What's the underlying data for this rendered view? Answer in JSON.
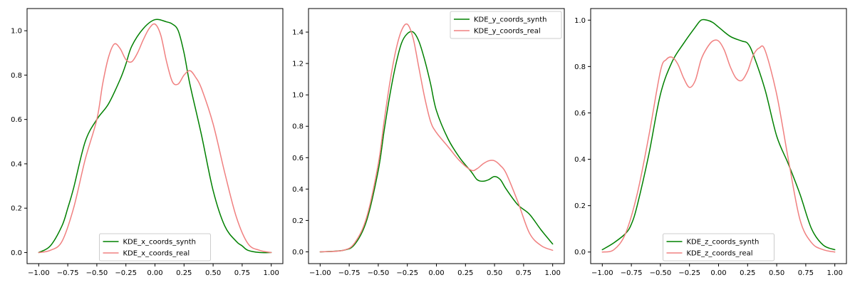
{
  "chart_data": [
    {
      "type": "line",
      "title": "",
      "xlabel": "",
      "ylabel": "",
      "xlim": [
        -1.1,
        1.1
      ],
      "ylim": [
        -0.05,
        1.1
      ],
      "xticks": [
        -1.0,
        -0.75,
        -0.5,
        -0.25,
        0.0,
        0.25,
        0.5,
        0.75,
        1.0
      ],
      "xtick_labels": [
        "−1.00",
        "−0.75",
        "−0.50",
        "−0.25",
        "0.00",
        "0.25",
        "0.50",
        "0.75",
        "1.00"
      ],
      "yticks": [
        0.0,
        0.2,
        0.4,
        0.6,
        0.8,
        1.0
      ],
      "ytick_labels": [
        "0.0",
        "0.2",
        "0.4",
        "0.6",
        "0.8",
        "1.0"
      ],
      "legend_position": "lower-center",
      "series": [
        {
          "name": "KDE_x_coords_synth",
          "color": "#008000",
          "x": [
            -1.0,
            -0.9,
            -0.8,
            -0.75,
            -0.7,
            -0.6,
            -0.5,
            -0.4,
            -0.3,
            -0.25,
            -0.2,
            -0.1,
            0.0,
            0.1,
            0.15,
            0.2,
            0.25,
            0.3,
            0.4,
            0.5,
            0.6,
            0.7,
            0.75,
            0.8,
            0.9,
            1.0
          ],
          "y": [
            0.0,
            0.03,
            0.12,
            0.2,
            0.29,
            0.5,
            0.6,
            0.67,
            0.78,
            0.85,
            0.93,
            1.01,
            1.05,
            1.04,
            1.03,
            1.0,
            0.9,
            0.76,
            0.53,
            0.28,
            0.12,
            0.05,
            0.03,
            0.01,
            0.0,
            0.0
          ]
        },
        {
          "name": "KDE_x_coords_real",
          "color": "#f08080",
          "x": [
            -1.0,
            -0.9,
            -0.8,
            -0.7,
            -0.6,
            -0.5,
            -0.45,
            -0.4,
            -0.35,
            -0.3,
            -0.25,
            -0.2,
            -0.15,
            -0.1,
            -0.05,
            0.0,
            0.05,
            0.1,
            0.15,
            0.2,
            0.25,
            0.3,
            0.35,
            0.4,
            0.5,
            0.6,
            0.7,
            0.8,
            0.9,
            1.0
          ],
          "y": [
            0.0,
            0.01,
            0.05,
            0.2,
            0.42,
            0.6,
            0.76,
            0.88,
            0.94,
            0.92,
            0.87,
            0.86,
            0.9,
            0.96,
            1.01,
            1.03,
            0.98,
            0.86,
            0.77,
            0.76,
            0.8,
            0.82,
            0.79,
            0.74,
            0.58,
            0.36,
            0.16,
            0.04,
            0.01,
            0.0
          ]
        }
      ]
    },
    {
      "type": "line",
      "title": "",
      "xlabel": "",
      "ylabel": "",
      "xlim": [
        -1.1,
        1.1
      ],
      "ylim": [
        -0.075,
        1.55
      ],
      "xticks": [
        -1.0,
        -0.75,
        -0.5,
        -0.25,
        0.0,
        0.25,
        0.5,
        0.75,
        1.0
      ],
      "xtick_labels": [
        "−1.00",
        "−0.75",
        "−0.50",
        "−0.25",
        "0.00",
        "0.25",
        "0.50",
        "0.75",
        "1.00"
      ],
      "yticks": [
        0.0,
        0.2,
        0.4,
        0.6,
        0.8,
        1.0,
        1.2,
        1.4
      ],
      "ytick_labels": [
        "0.0",
        "0.2",
        "0.4",
        "0.6",
        "0.8",
        "1.0",
        "1.2",
        "1.4"
      ],
      "legend_position": "upper-right",
      "series": [
        {
          "name": "KDE_y_coords_synth",
          "color": "#008000",
          "x": [
            -1.0,
            -0.8,
            -0.7,
            -0.6,
            -0.5,
            -0.45,
            -0.4,
            -0.35,
            -0.3,
            -0.25,
            -0.2,
            -0.15,
            -0.1,
            -0.05,
            0.0,
            0.1,
            0.2,
            0.3,
            0.35,
            0.4,
            0.45,
            0.5,
            0.55,
            0.6,
            0.7,
            0.8,
            0.9,
            1.0
          ],
          "y": [
            0.0,
            0.01,
            0.05,
            0.2,
            0.52,
            0.77,
            1.0,
            1.19,
            1.33,
            1.39,
            1.4,
            1.34,
            1.22,
            1.07,
            0.9,
            0.72,
            0.6,
            0.51,
            0.46,
            0.45,
            0.46,
            0.48,
            0.46,
            0.4,
            0.3,
            0.24,
            0.14,
            0.05
          ]
        },
        {
          "name": "KDE_y_coords_real",
          "color": "#f08080",
          "x": [
            -1.0,
            -0.8,
            -0.7,
            -0.6,
            -0.5,
            -0.45,
            -0.4,
            -0.35,
            -0.3,
            -0.25,
            -0.2,
            -0.15,
            -0.1,
            -0.05,
            0.0,
            0.1,
            0.2,
            0.3,
            0.35,
            0.4,
            0.45,
            0.5,
            0.55,
            0.6,
            0.7,
            0.8,
            0.9,
            1.0
          ],
          "y": [
            0.0,
            0.01,
            0.06,
            0.22,
            0.56,
            0.83,
            1.08,
            1.28,
            1.41,
            1.45,
            1.36,
            1.17,
            0.98,
            0.83,
            0.76,
            0.67,
            0.58,
            0.52,
            0.53,
            0.56,
            0.58,
            0.58,
            0.55,
            0.5,
            0.32,
            0.12,
            0.04,
            0.01
          ]
        }
      ]
    },
    {
      "type": "line",
      "title": "",
      "xlabel": "",
      "ylabel": "",
      "xlim": [
        -1.1,
        1.1
      ],
      "ylim": [
        -0.05,
        1.05
      ],
      "xticks": [
        -1.0,
        -0.75,
        -0.5,
        -0.25,
        0.0,
        0.25,
        0.5,
        0.75,
        1.0
      ],
      "xtick_labels": [
        "−1.00",
        "−0.75",
        "−0.50",
        "−0.25",
        "0.00",
        "0.25",
        "0.50",
        "0.75",
        "1.00"
      ],
      "yticks": [
        0.0,
        0.2,
        0.4,
        0.6,
        0.8,
        1.0
      ],
      "ytick_labels": [
        "0.0",
        "0.2",
        "0.4",
        "0.6",
        "0.8",
        "1.0"
      ],
      "legend_position": "lower-center",
      "series": [
        {
          "name": "KDE_z_coords_synth",
          "color": "#008000",
          "x": [
            -1.0,
            -0.9,
            -0.8,
            -0.75,
            -0.7,
            -0.6,
            -0.5,
            -0.4,
            -0.3,
            -0.2,
            -0.15,
            -0.1,
            -0.05,
            0.0,
            0.1,
            0.2,
            0.25,
            0.3,
            0.4,
            0.5,
            0.6,
            0.7,
            0.8,
            0.9,
            1.0
          ],
          "y": [
            0.01,
            0.04,
            0.08,
            0.12,
            0.2,
            0.42,
            0.68,
            0.82,
            0.9,
            0.97,
            1.0,
            1.0,
            0.99,
            0.97,
            0.93,
            0.91,
            0.9,
            0.85,
            0.7,
            0.5,
            0.38,
            0.25,
            0.1,
            0.03,
            0.01
          ]
        },
        {
          "name": "KDE_z_coords_real",
          "color": "#f08080",
          "x": [
            -1.0,
            -0.9,
            -0.8,
            -0.7,
            -0.6,
            -0.5,
            -0.45,
            -0.4,
            -0.35,
            -0.3,
            -0.25,
            -0.2,
            -0.15,
            -0.1,
            -0.05,
            0.0,
            0.05,
            0.1,
            0.15,
            0.2,
            0.25,
            0.3,
            0.35,
            0.4,
            0.5,
            0.6,
            0.7,
            0.8,
            0.9,
            1.0
          ],
          "y": [
            0.0,
            0.01,
            0.08,
            0.25,
            0.5,
            0.78,
            0.83,
            0.84,
            0.81,
            0.75,
            0.71,
            0.74,
            0.83,
            0.88,
            0.91,
            0.91,
            0.87,
            0.8,
            0.75,
            0.74,
            0.78,
            0.85,
            0.88,
            0.87,
            0.68,
            0.4,
            0.14,
            0.04,
            0.01,
            0.0
          ]
        }
      ]
    }
  ]
}
